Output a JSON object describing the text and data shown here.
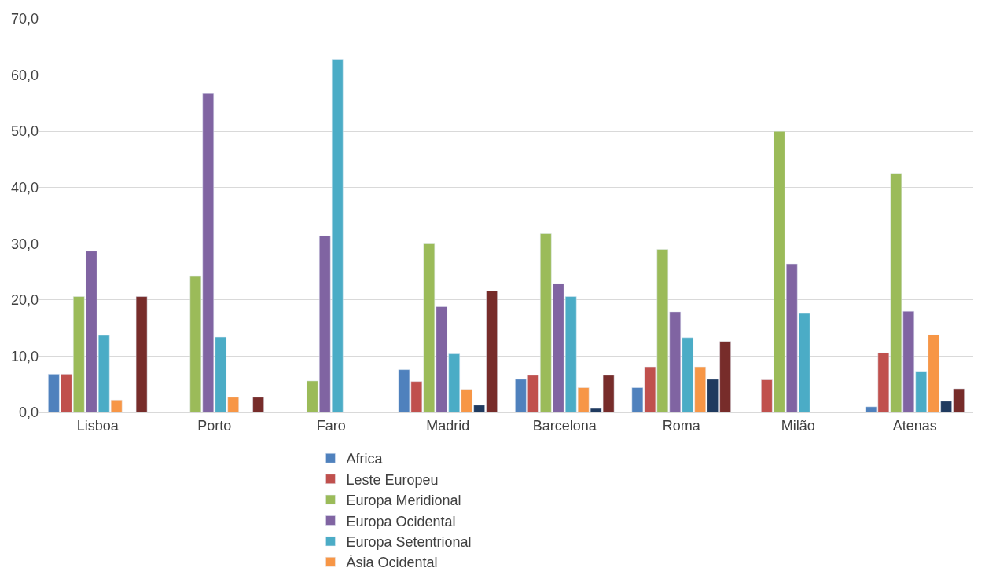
{
  "chart_data": {
    "type": "bar",
    "categories": [
      "Lisboa",
      "Porto",
      "Faro",
      "Madrid",
      "Barcelona",
      "Roma",
      "Milão",
      "Atenas"
    ],
    "series": [
      {
        "name": "Africa",
        "color": "#4f81bd",
        "values": [
          6.8,
          null,
          null,
          7.6,
          5.9,
          4.4,
          null,
          1.0
        ]
      },
      {
        "name": "Leste Europeu",
        "color": "#c0504d",
        "values": [
          6.8,
          null,
          null,
          5.5,
          6.6,
          8.1,
          5.8,
          10.6
        ]
      },
      {
        "name": "Europa Meridional",
        "color": "#9bbb59",
        "values": [
          20.6,
          24.3,
          5.6,
          30.1,
          31.8,
          29.0,
          50.0,
          42.5
        ]
      },
      {
        "name": "Europa Ocidental",
        "color": "#8064a2",
        "values": [
          28.7,
          56.7,
          31.4,
          18.8,
          22.9,
          17.9,
          26.4,
          18.0
        ]
      },
      {
        "name": "Europa Setentrional",
        "color": "#4bacc6",
        "values": [
          13.7,
          13.4,
          62.8,
          10.4,
          20.6,
          13.3,
          17.6,
          7.3
        ]
      },
      {
        "name": "Ásia Ocidental",
        "color": "#f79646",
        "values": [
          2.2,
          2.7,
          null,
          4.1,
          4.4,
          8.1,
          null,
          13.8
        ]
      },
      {
        "color": "#1f3a5f",
        "values": [
          null,
          null,
          null,
          1.3,
          0.7,
          5.9,
          null,
          2.0
        ]
      },
      {
        "color": "#772c2a",
        "values": [
          20.6,
          2.7,
          null,
          21.6,
          6.6,
          12.6,
          null,
          4.2
        ]
      }
    ],
    "ylim": [
      0,
      70
    ],
    "yticks": [
      {
        "value": 0,
        "label": "0,0"
      },
      {
        "value": 10,
        "label": "10,0"
      },
      {
        "value": 20,
        "label": "20,0"
      },
      {
        "value": 30,
        "label": "30,0"
      },
      {
        "value": 40,
        "label": "40,0"
      },
      {
        "value": 50,
        "label": "50,0"
      },
      {
        "value": 60,
        "label": "60,0"
      },
      {
        "value": 70,
        "label": "70,0"
      }
    ],
    "grid": "y",
    "legend": "bottom"
  }
}
